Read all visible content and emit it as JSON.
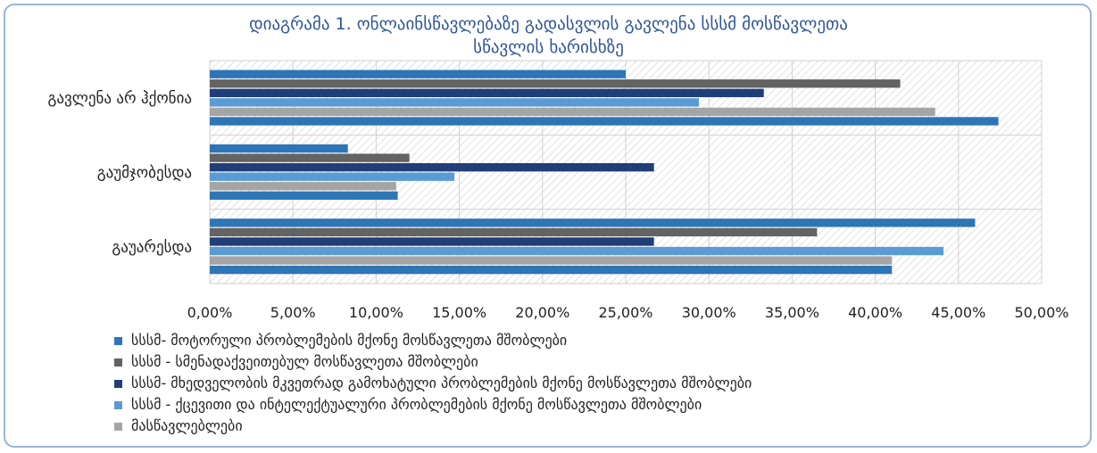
{
  "chart_data": {
    "type": "bar",
    "orientation": "horizontal",
    "title_line1": "დიაგრამა 1. ონლაინსწავლებაზე გადასვლის გავლენა სსსმ მოსწავლეთა",
    "title_line2": "სწავლის ხარისხზე",
    "categories": [
      "გავლენა არ ჰქონია",
      "გაუმჯობესდა",
      "გაუარესდა"
    ],
    "xlim": [
      0,
      50
    ],
    "xticks": [
      "0,00%",
      "5,00%",
      "10,00%",
      "15,00%",
      "20,00%",
      "25,00%",
      "30,00%",
      "35,00%",
      "40,00%",
      "45,00%",
      "50,00%"
    ],
    "grid": true,
    "legend_position": "bottom-left",
    "series": [
      {
        "name": "სსსმ- მოტორული პრობლემების მქონე მოსწავლეთა მშობლები",
        "color": "#2e75b6",
        "values": [
          25.0,
          8.3,
          46.0
        ]
      },
      {
        "name": "სსსმ - სმენადაქვეითებულ მოსწავლეთა  მშობლები",
        "color": "#636363",
        "values": [
          41.5,
          12.0,
          36.5
        ]
      },
      {
        "name": "სსსმ- მხედველობის მკვეთრად გამოხატული პრობლემების მქონე მოსწავლეთა მშობლები",
        "color": "#203e78",
        "values": [
          33.3,
          26.7,
          26.7
        ]
      },
      {
        "name": "სსსმ - ქცევითი და ინტელექტუალური პრობლემების მქონე მოსწავლეთა მშობლები",
        "color": "#5b9bd5",
        "values": [
          29.4,
          14.7,
          44.1
        ]
      },
      {
        "name": "მასწავლებლები",
        "color": "#a5a5a5",
        "values": [
          43.6,
          11.2,
          41.0
        ]
      },
      {
        "name": "",
        "color": "#2e75b6",
        "values": [
          47.4,
          11.3,
          41.0
        ]
      }
    ]
  }
}
